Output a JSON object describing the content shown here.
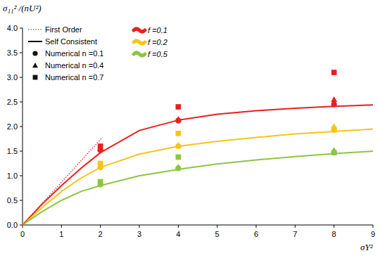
{
  "chart_data": {
    "type": "line",
    "y_label": "σ₁₁² /(nU²)",
    "x_label": "σY²",
    "self_consistent_label": "Self Consistent",
    "xlim": [
      0,
      9
    ],
    "ylim": [
      0,
      4
    ],
    "xticks": [
      0,
      1,
      2,
      3,
      4,
      5,
      6,
      7,
      8,
      9
    ],
    "yticks": [
      {
        "value": 0,
        "label": "0.0"
      },
      {
        "value": 0.5,
        "label": "0.5"
      },
      {
        "value": 1,
        "label": "1.0"
      },
      {
        "value": 1.5,
        "label": "1.5"
      },
      {
        "value": 2,
        "label": "2.0"
      },
      {
        "value": 2.5,
        "label": "2.5"
      },
      {
        "value": 3,
        "label": "3.0"
      },
      {
        "value": 3.5,
        "label": "3.5"
      },
      {
        "value": 4,
        "label": "4.0"
      }
    ],
    "grid": false,
    "legend": "top-left",
    "series": [
      {
        "name": "f =0.1",
        "type": "line",
        "line_style": "solid",
        "color": "#e8201e",
        "x": [
          0,
          0.5,
          1,
          1.5,
          2,
          3,
          4,
          5,
          6,
          7,
          8,
          9
        ],
        "values": [
          0,
          0.42,
          0.8,
          1.15,
          1.47,
          1.92,
          2.13,
          2.25,
          2.32,
          2.37,
          2.41,
          2.44
        ]
      },
      {
        "name": "f =0.2",
        "type": "line",
        "line_style": "solid",
        "color": "#f5c518",
        "x": [
          0,
          0.5,
          1,
          1.5,
          2,
          3,
          4,
          5,
          6,
          7,
          8,
          9
        ],
        "values": [
          0,
          0.35,
          0.68,
          0.95,
          1.17,
          1.44,
          1.6,
          1.7,
          1.78,
          1.85,
          1.9,
          1.95
        ]
      },
      {
        "name": "f =0.5",
        "type": "line",
        "line_style": "solid",
        "color": "#8cc63f",
        "x": [
          0,
          0.5,
          1,
          1.5,
          2,
          3,
          4,
          5,
          6,
          7,
          8,
          9
        ],
        "values": [
          0,
          0.27,
          0.5,
          0.68,
          0.8,
          1.0,
          1.13,
          1.24,
          1.32,
          1.39,
          1.45,
          1.5
        ]
      },
      {
        "name": "First Order",
        "type": "line",
        "line_style": "dotted",
        "color": "#e8201e",
        "x": [
          0,
          2.05
        ],
        "values": [
          0,
          1.78
        ]
      },
      {
        "name": "Numerical n =0.1",
        "type": "scatter",
        "marker": "circle",
        "colors": [
          "#e8201e",
          "#f5c518",
          "#8cc63f",
          "#e8201e",
          "#f5c518",
          "#8cc63f",
          "#e8201e",
          "#f5c518",
          "#8cc63f"
        ],
        "x": [
          2,
          2,
          2,
          4,
          4,
          4,
          8,
          8,
          8
        ],
        "values": [
          1.52,
          1.17,
          0.82,
          2.12,
          1.6,
          1.15,
          2.45,
          1.93,
          1.47
        ]
      },
      {
        "name": "Numerical n =0.4",
        "type": "scatter",
        "marker": "triangle",
        "colors": [
          "#e8201e",
          "#f5c518",
          "#8cc63f",
          "#e8201e",
          "#f5c518",
          "#8cc63f",
          "#e8201e",
          "#f5c518",
          "#8cc63f"
        ],
        "x": [
          2,
          2,
          2,
          4,
          4,
          4,
          8,
          8,
          8
        ],
        "values": [
          1.55,
          1.2,
          0.84,
          2.15,
          1.62,
          1.18,
          2.55,
          2.0,
          1.52
        ]
      },
      {
        "name": "Numerical n =0.7",
        "type": "scatter",
        "marker": "square",
        "colors": [
          "#e8201e",
          "#f5c518",
          "#8cc63f",
          "#e8201e",
          "#f5c518",
          "#8cc63f",
          "#e8201e",
          "#f5c518",
          "#8cc63f"
        ],
        "x": [
          2,
          2,
          2,
          4,
          4,
          4,
          8,
          8,
          8
        ],
        "values": [
          1.6,
          1.25,
          0.88,
          2.4,
          1.86,
          1.38,
          3.1,
          1.95,
          1.47
        ]
      }
    ]
  }
}
